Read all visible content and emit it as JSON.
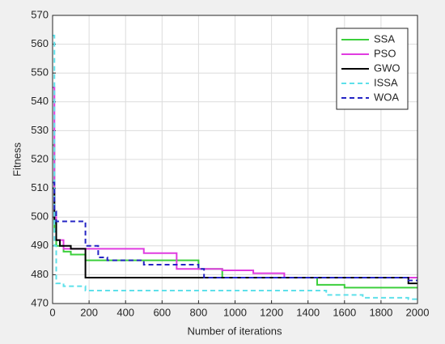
{
  "chart_data": {
    "type": "line",
    "step": true,
    "x_label": "Number of iterations",
    "y_label": "Fitness",
    "x": [
      0,
      10,
      20,
      40,
      60,
      100,
      180,
      200,
      250,
      300,
      400,
      500,
      680,
      800,
      830,
      930,
      1000,
      1100,
      1270,
      1450,
      1500,
      1600,
      1700,
      1950,
      2000
    ],
    "series": [
      {
        "name": "SSA",
        "color": "#3ccf3c",
        "dash": false,
        "values": [
          525,
          495,
          490,
          490,
          488,
          487,
          485,
          485,
          485,
          485,
          485,
          485,
          485,
          482,
          482,
          479,
          479,
          479,
          479,
          476.5,
          476.5,
          475.5,
          475.5,
          475.5,
          475.5
        ]
      },
      {
        "name": "PSO",
        "color": "#e03ce0",
        "dash": false,
        "values": [
          545,
          500,
          492,
          492,
          489,
          489,
          489,
          489,
          489,
          489,
          489,
          487.5,
          482,
          482,
          482,
          481.5,
          481.5,
          480.5,
          479,
          479,
          479,
          479,
          479,
          479,
          479
        ]
      },
      {
        "name": "GWO",
        "color": "#000000",
        "dash": false,
        "values": [
          510,
          498,
          492,
          490,
          490,
          489,
          479,
          479,
          479,
          479,
          479,
          479,
          479,
          479,
          479,
          479,
          479,
          479,
          479,
          479,
          479,
          479,
          479,
          477,
          477
        ]
      },
      {
        "name": "ISSA",
        "color": "#5ee0ea",
        "dash": true,
        "values": [
          563,
          490,
          477,
          477,
          476,
          476,
          474.5,
          474.5,
          474.5,
          474.5,
          474.5,
          474.5,
          474.5,
          474.5,
          474.5,
          474.5,
          474.5,
          474.5,
          474.5,
          474.5,
          473,
          473,
          472,
          471.5,
          471.5
        ]
      },
      {
        "name": "WOA",
        "color": "#2424c4",
        "dash": true,
        "values": [
          512,
          502,
          498.5,
          498.5,
          498.5,
          498.5,
          490,
          490,
          486,
          485,
          485,
          483.5,
          483.5,
          482,
          479,
          479,
          479,
          479,
          479,
          479,
          479,
          479,
          479,
          478,
          478
        ]
      }
    ],
    "xlim": [
      0,
      2000
    ],
    "xticks": [
      0,
      200,
      400,
      600,
      800,
      1000,
      1200,
      1400,
      1600,
      1800,
      2000
    ],
    "ylim": [
      470,
      570
    ],
    "yticks": [
      470,
      480,
      490,
      500,
      510,
      520,
      530,
      540,
      550,
      560,
      570
    ],
    "grid": true,
    "legend": "top-right"
  }
}
